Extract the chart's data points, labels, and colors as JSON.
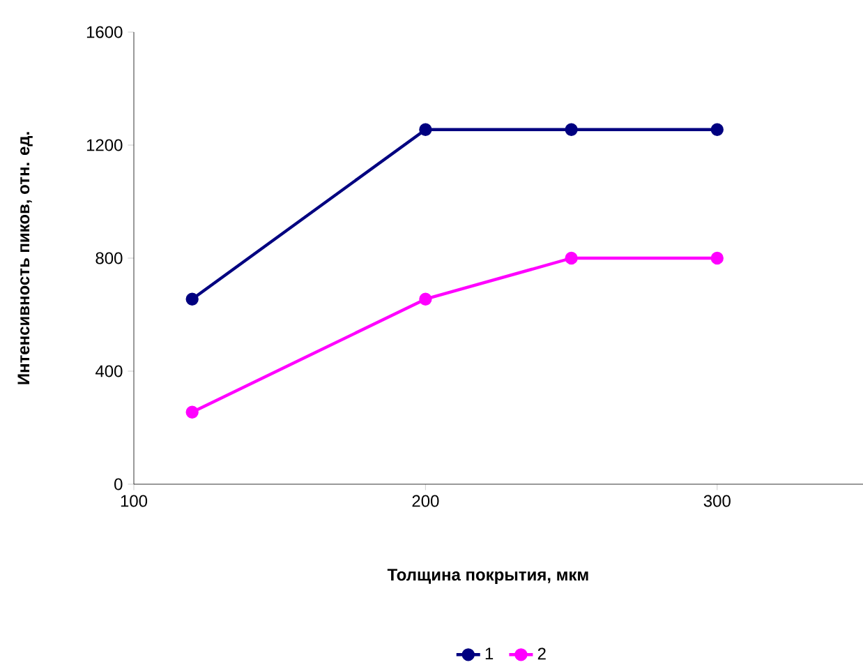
{
  "chart_data": {
    "type": "line",
    "xlabel": "Толщина покрытия, мкм",
    "ylabel": "Интенсивность пиков, отн. ед.",
    "xlim": [
      100,
      350
    ],
    "xticks": [
      100,
      200,
      300
    ],
    "ylim": [
      0,
      1600
    ],
    "yticks": [
      0,
      400,
      800,
      1200,
      1600
    ],
    "series": [
      {
        "name": "1",
        "color": "#000080",
        "x": [
          120,
          200,
          250,
          300
        ],
        "values": [
          655,
          1255,
          1255,
          1255
        ]
      },
      {
        "name": "2",
        "color": "#ff00ff",
        "x": [
          120,
          200,
          250,
          300
        ],
        "values": [
          255,
          655,
          800,
          800
        ]
      }
    ],
    "legend": "bottom",
    "marker": "circle",
    "line_style": "solid",
    "grid": false
  }
}
